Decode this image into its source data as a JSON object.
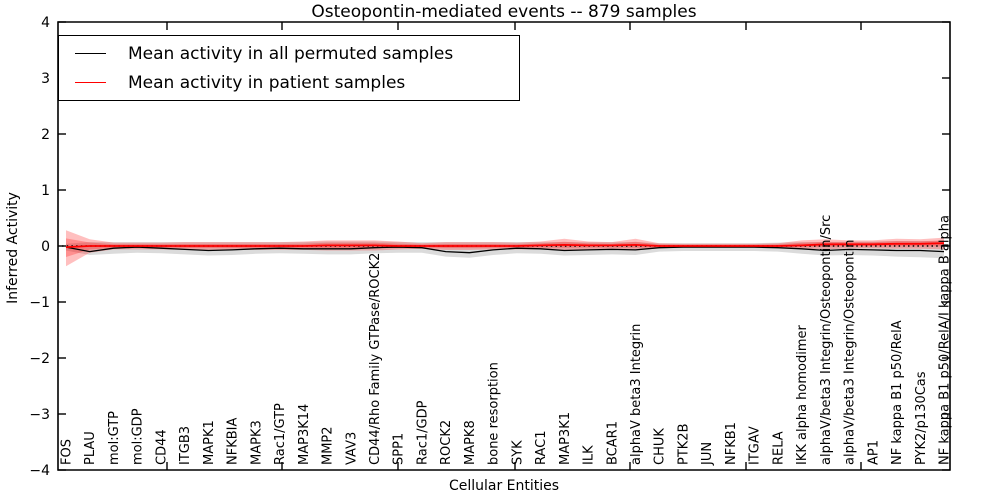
{
  "chart_data": {
    "type": "line",
    "title": "Osteopontin-mediated events -- 879 samples",
    "xlabel": "Cellular Entities",
    "ylabel": "Inferred Activity",
    "ylim": [
      -4,
      4
    ],
    "yticks": [
      4,
      3,
      2,
      1,
      0,
      -1,
      -2,
      -3,
      -4
    ],
    "grid": false,
    "legend_position": "upper left",
    "categories": [
      "FOS",
      "PLAU",
      "mol:GTP",
      "mol:GDP",
      "CD44",
      "ITGB3",
      "MAPK1",
      "NFKBIA",
      "MAPK3",
      "Rac1/GTP",
      "MAP3K14",
      "MMP2",
      "VAV3",
      "CD44/Rho Family GTPase/ROCK2",
      "SPP1",
      "Rac1/GDP",
      "ROCK2",
      "MAPK8",
      "bone resorption",
      "SYK",
      "RAC1",
      "MAP3K1",
      "ILK",
      "BCAR1",
      "alphaV beta3 Integrin",
      "CHUK",
      "PTK2B",
      "JUN",
      "NFKB1",
      "ITGAV",
      "RELA",
      "IKK alpha homodimer",
      "alphaV/beta3 Integrin/Osteopontin/Src",
      "alphaV/beta3 Integrin/Osteopontin",
      "AP1",
      "NF kappa B1 p50/RelA",
      "PYK2/p130Cas",
      "NF kappa B1 p50/RelA/I kappa B alpha"
    ],
    "series": [
      {
        "name": "Mean activity in all permuted samples",
        "color": "#000000",
        "style": "solid",
        "values": [
          -0.02,
          -0.1,
          -0.04,
          -0.02,
          -0.04,
          -0.06,
          -0.08,
          -0.07,
          -0.05,
          -0.04,
          -0.05,
          -0.05,
          -0.05,
          -0.03,
          -0.02,
          -0.03,
          -0.1,
          -0.12,
          -0.07,
          -0.04,
          -0.05,
          -0.08,
          -0.07,
          -0.06,
          -0.07,
          -0.03,
          -0.02,
          -0.02,
          -0.02,
          -0.02,
          -0.03,
          -0.05,
          -0.08,
          -0.06,
          -0.07,
          -0.08,
          -0.08,
          -0.1
        ]
      },
      {
        "name": "Mean activity in patient samples",
        "color": "#ff0000",
        "style": "solid",
        "values": [
          -0.02,
          0.0,
          0.0,
          0.0,
          0.0,
          0.0,
          0.0,
          0.0,
          0.0,
          0.0,
          0.0,
          0.01,
          0.01,
          0.01,
          0.0,
          0.0,
          0.0,
          0.0,
          0.0,
          0.0,
          0.01,
          0.02,
          0.01,
          0.01,
          0.02,
          0.0,
          0.0,
          0.0,
          0.0,
          0.0,
          0.0,
          0.01,
          0.03,
          0.03,
          0.03,
          0.04,
          0.04,
          0.05
        ]
      }
    ],
    "bands": [
      {
        "name": "permuted-range",
        "color": "#999999",
        "opacity": 0.35,
        "upper": [
          0.04,
          0.07,
          0.07,
          0.07,
          0.07,
          0.07,
          0.07,
          0.07,
          0.07,
          0.07,
          0.07,
          0.08,
          0.08,
          0.08,
          0.07,
          0.07,
          0.07,
          0.07,
          0.07,
          0.07,
          0.07,
          0.07,
          0.07,
          0.07,
          0.07,
          0.05,
          0.05,
          0.05,
          0.05,
          0.05,
          0.06,
          0.07,
          0.07,
          0.08,
          0.08,
          0.09,
          0.09,
          0.09
        ],
        "lower": [
          -0.08,
          -0.16,
          -0.14,
          -0.12,
          -0.13,
          -0.15,
          -0.17,
          -0.16,
          -0.14,
          -0.13,
          -0.14,
          -0.15,
          -0.15,
          -0.13,
          -0.12,
          -0.12,
          -0.19,
          -0.21,
          -0.16,
          -0.13,
          -0.14,
          -0.17,
          -0.16,
          -0.15,
          -0.16,
          -0.1,
          -0.09,
          -0.09,
          -0.09,
          -0.09,
          -0.1,
          -0.14,
          -0.17,
          -0.16,
          -0.17,
          -0.19,
          -0.2,
          -0.22
        ]
      },
      {
        "name": "patient-range",
        "color": "#ff0000",
        "opacity": 0.25,
        "upper": [
          0.28,
          0.12,
          0.06,
          0.06,
          0.06,
          0.07,
          0.07,
          0.07,
          0.07,
          0.07,
          0.08,
          0.1,
          0.1,
          0.1,
          0.08,
          0.05,
          0.07,
          0.07,
          0.07,
          0.06,
          0.08,
          0.13,
          0.08,
          0.07,
          0.13,
          0.05,
          0.04,
          0.04,
          0.04,
          0.04,
          0.05,
          0.1,
          0.12,
          0.1,
          0.1,
          0.13,
          0.12,
          0.15
        ],
        "lower": [
          -0.36,
          -0.12,
          -0.06,
          -0.06,
          -0.06,
          -0.07,
          -0.07,
          -0.07,
          -0.07,
          -0.07,
          -0.07,
          -0.08,
          -0.08,
          -0.08,
          -0.06,
          -0.05,
          -0.07,
          -0.07,
          -0.06,
          -0.06,
          -0.06,
          -0.08,
          -0.06,
          -0.06,
          -0.08,
          -0.04,
          -0.03,
          -0.03,
          -0.03,
          -0.03,
          -0.03,
          -0.05,
          -0.06,
          -0.04,
          -0.04,
          -0.05,
          -0.05,
          -0.06
        ]
      }
    ],
    "reference_line": {
      "value": 0,
      "style": "dotted",
      "color": "#000000"
    }
  },
  "legend": {
    "items": [
      {
        "label": "Mean activity in all permuted samples",
        "color": "#000000"
      },
      {
        "label": "Mean activity in patient samples",
        "color": "#ff0000"
      }
    ]
  }
}
